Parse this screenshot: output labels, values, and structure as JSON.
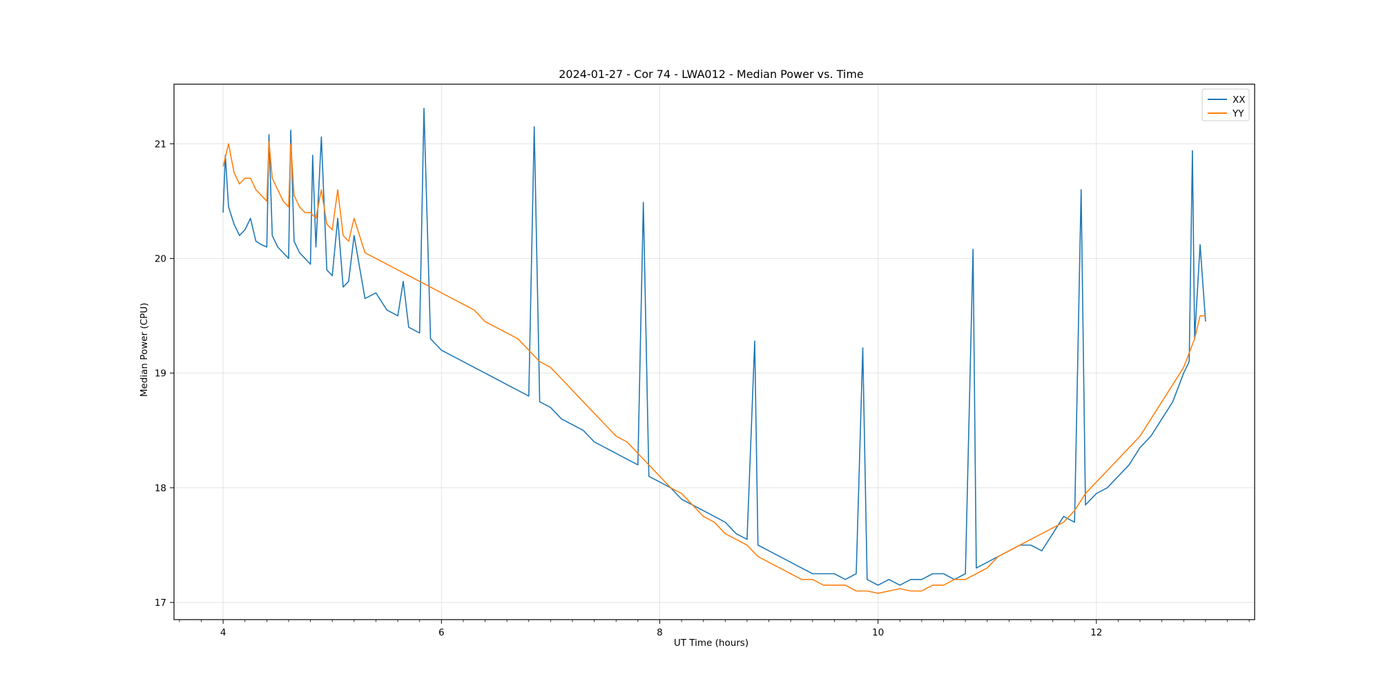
{
  "chart_data": {
    "type": "line",
    "title": "2024-01-27 - Cor 74 - LWA012 - Median Power vs. Time",
    "xlabel": "UT Time (hours)",
    "ylabel": "Median Power (CPU)",
    "xlim": [
      3.55,
      13.45
    ],
    "ylim": [
      16.85,
      21.52
    ],
    "xticks": [
      4,
      6,
      8,
      10,
      12
    ],
    "yticks": [
      17,
      18,
      19,
      20,
      21
    ],
    "grid": true,
    "legend": "top-right",
    "series": [
      {
        "name": "XX",
        "color": "#1f77b4",
        "x": [
          4.0,
          4.02,
          4.05,
          4.1,
          4.15,
          4.2,
          4.25,
          4.3,
          4.35,
          4.4,
          4.42,
          4.45,
          4.5,
          4.55,
          4.6,
          4.62,
          4.65,
          4.7,
          4.75,
          4.8,
          4.82,
          4.85,
          4.9,
          4.95,
          5.0,
          5.05,
          5.1,
          5.15,
          5.2,
          5.3,
          5.4,
          5.5,
          5.6,
          5.65,
          5.7,
          5.8,
          5.84,
          5.9,
          6.0,
          6.1,
          6.2,
          6.3,
          6.4,
          6.5,
          6.6,
          6.7,
          6.8,
          6.85,
          6.9,
          7.0,
          7.1,
          7.2,
          7.3,
          7.4,
          7.5,
          7.6,
          7.7,
          7.8,
          7.85,
          7.9,
          8.0,
          8.1,
          8.2,
          8.3,
          8.4,
          8.5,
          8.6,
          8.7,
          8.8,
          8.87,
          8.9,
          9.0,
          9.1,
          9.2,
          9.3,
          9.4,
          9.5,
          9.6,
          9.7,
          9.8,
          9.86,
          9.9,
          10.0,
          10.1,
          10.2,
          10.3,
          10.4,
          10.5,
          10.6,
          10.7,
          10.8,
          10.87,
          10.9,
          11.0,
          11.1,
          11.2,
          11.3,
          11.4,
          11.5,
          11.6,
          11.7,
          11.8,
          11.86,
          11.9,
          12.0,
          12.1,
          12.2,
          12.3,
          12.4,
          12.5,
          12.6,
          12.7,
          12.8,
          12.85,
          12.88,
          12.9,
          12.95,
          13.0
        ],
        "y": [
          20.4,
          20.9,
          20.45,
          20.3,
          20.2,
          20.25,
          20.35,
          20.15,
          20.12,
          20.1,
          21.08,
          20.2,
          20.1,
          20.05,
          20.0,
          21.12,
          20.15,
          20.05,
          20.0,
          19.95,
          20.9,
          20.1,
          21.06,
          19.9,
          19.85,
          20.35,
          19.75,
          19.8,
          20.2,
          19.65,
          19.7,
          19.55,
          19.5,
          19.8,
          19.4,
          19.35,
          21.31,
          19.3,
          19.2,
          19.15,
          19.1,
          19.05,
          19.0,
          18.95,
          18.9,
          18.85,
          18.8,
          21.15,
          18.75,
          18.7,
          18.6,
          18.55,
          18.5,
          18.4,
          18.35,
          18.3,
          18.25,
          18.2,
          20.49,
          18.1,
          18.05,
          18.0,
          17.9,
          17.85,
          17.8,
          17.75,
          17.7,
          17.6,
          17.55,
          19.28,
          17.5,
          17.45,
          17.4,
          17.35,
          17.3,
          17.25,
          17.25,
          17.25,
          17.2,
          17.25,
          19.22,
          17.2,
          17.15,
          17.2,
          17.15,
          17.2,
          17.2,
          17.25,
          17.25,
          17.2,
          17.25,
          20.08,
          17.3,
          17.35,
          17.4,
          17.45,
          17.5,
          17.5,
          17.45,
          17.6,
          17.75,
          17.7,
          20.6,
          17.85,
          17.95,
          18.0,
          18.1,
          18.2,
          18.35,
          18.45,
          18.6,
          18.75,
          19.0,
          19.1,
          20.94,
          19.3,
          20.12,
          19.45
        ]
      },
      {
        "name": "YY",
        "color": "#ff7f0e",
        "x": [
          4.0,
          4.05,
          4.1,
          4.15,
          4.2,
          4.25,
          4.3,
          4.35,
          4.4,
          4.42,
          4.45,
          4.5,
          4.55,
          4.6,
          4.62,
          4.65,
          4.7,
          4.75,
          4.8,
          4.85,
          4.9,
          4.95,
          5.0,
          5.05,
          5.1,
          5.15,
          5.2,
          5.3,
          5.4,
          5.5,
          5.6,
          5.7,
          5.8,
          5.9,
          6.0,
          6.1,
          6.2,
          6.3,
          6.4,
          6.5,
          6.6,
          6.7,
          6.8,
          6.9,
          7.0,
          7.1,
          7.2,
          7.3,
          7.4,
          7.5,
          7.6,
          7.7,
          7.8,
          7.9,
          8.0,
          8.1,
          8.2,
          8.3,
          8.4,
          8.5,
          8.6,
          8.7,
          8.8,
          8.9,
          9.0,
          9.1,
          9.2,
          9.3,
          9.4,
          9.5,
          9.6,
          9.7,
          9.8,
          9.9,
          10.0,
          10.1,
          10.2,
          10.3,
          10.4,
          10.5,
          10.6,
          10.7,
          10.8,
          10.9,
          11.0,
          11.1,
          11.2,
          11.3,
          11.4,
          11.5,
          11.6,
          11.7,
          11.8,
          11.9,
          12.0,
          12.1,
          12.2,
          12.3,
          12.4,
          12.5,
          12.6,
          12.7,
          12.8,
          12.9,
          12.95,
          13.0
        ],
        "y": [
          20.8,
          21.0,
          20.75,
          20.65,
          20.7,
          20.7,
          20.6,
          20.55,
          20.5,
          21.02,
          20.7,
          20.6,
          20.5,
          20.45,
          21.0,
          20.55,
          20.45,
          20.4,
          20.4,
          20.35,
          20.6,
          20.3,
          20.25,
          20.6,
          20.2,
          20.15,
          20.35,
          20.05,
          20.0,
          19.95,
          19.9,
          19.85,
          19.8,
          19.75,
          19.7,
          19.65,
          19.6,
          19.55,
          19.45,
          19.4,
          19.35,
          19.3,
          19.2,
          19.1,
          19.05,
          18.95,
          18.85,
          18.75,
          18.65,
          18.55,
          18.45,
          18.4,
          18.3,
          18.2,
          18.1,
          18.0,
          17.95,
          17.85,
          17.75,
          17.7,
          17.6,
          17.55,
          17.5,
          17.4,
          17.35,
          17.3,
          17.25,
          17.2,
          17.2,
          17.15,
          17.15,
          17.15,
          17.1,
          17.1,
          17.08,
          17.1,
          17.12,
          17.1,
          17.1,
          17.15,
          17.15,
          17.2,
          17.2,
          17.25,
          17.3,
          17.4,
          17.45,
          17.5,
          17.55,
          17.6,
          17.65,
          17.7,
          17.8,
          17.95,
          18.05,
          18.15,
          18.25,
          18.35,
          18.45,
          18.6,
          18.75,
          18.9,
          19.05,
          19.3,
          19.5,
          19.5
        ]
      }
    ]
  }
}
